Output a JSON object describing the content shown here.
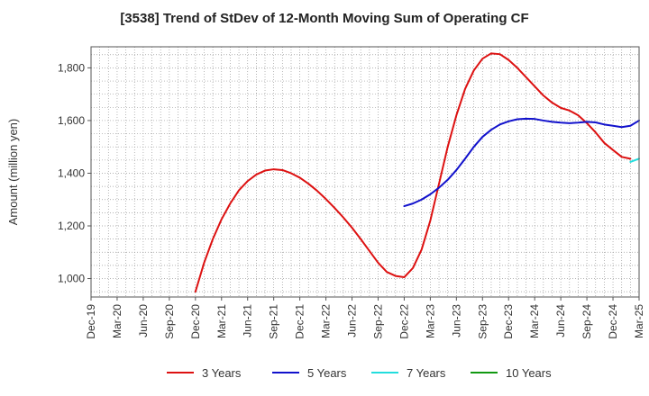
{
  "chart_data": {
    "type": "line",
    "title": "[3538]  Trend of StDev of 12-Month Moving Sum of Operating CF",
    "xlabel": "",
    "ylabel": "Amount (million yen)",
    "ylim": [
      930,
      1880
    ],
    "yticks": [
      1000,
      1200,
      1400,
      1600,
      1800
    ],
    "ytick_labels": [
      "1,000",
      "1,200",
      "1,400",
      "1,600",
      "1,800"
    ],
    "xticks": [
      "Dec-19",
      "Mar-20",
      "Jun-20",
      "Sep-20",
      "Dec-20",
      "Mar-21",
      "Jun-21",
      "Sep-21",
      "Dec-21",
      "Mar-22",
      "Jun-22",
      "Sep-22",
      "Dec-22",
      "Mar-23",
      "Jun-23",
      "Sep-23",
      "Dec-23",
      "Mar-24",
      "Jun-24",
      "Sep-24",
      "Dec-24",
      "Mar-25"
    ],
    "grid": true,
    "legend_position": "bottom",
    "series": [
      {
        "name": "3 Years",
        "color": "#dd1111",
        "start_index": 12,
        "values": [
          950,
          1060,
          1150,
          1225,
          1285,
          1335,
          1370,
          1395,
          1410,
          1415,
          1412,
          1400,
          1383,
          1360,
          1333,
          1302,
          1268,
          1232,
          1193,
          1150,
          1105,
          1060,
          1025,
          1010,
          1005,
          1040,
          1110,
          1220,
          1360,
          1500,
          1620,
          1720,
          1790,
          1835,
          1855,
          1852,
          1830,
          1800,
          1765,
          1730,
          1695,
          1668,
          1648,
          1638,
          1620,
          1590,
          1555,
          1515,
          1488,
          1462,
          1455
        ]
      },
      {
        "name": "5 Years",
        "color": "#1111cc",
        "start_index": 36,
        "values": [
          1275,
          1285,
          1300,
          1320,
          1345,
          1375,
          1412,
          1455,
          1500,
          1538,
          1565,
          1585,
          1597,
          1605,
          1607,
          1606,
          1600,
          1595,
          1592,
          1590,
          1592,
          1595,
          1593,
          1585,
          1580,
          1575,
          1580,
          1600
        ]
      },
      {
        "name": "7 Years",
        "color": "#22dddd",
        "start_index": 62,
        "values": [
          1443,
          1455
        ]
      },
      {
        "name": "10 Years",
        "color": "#119911",
        "start_index": 63,
        "values": []
      }
    ]
  }
}
